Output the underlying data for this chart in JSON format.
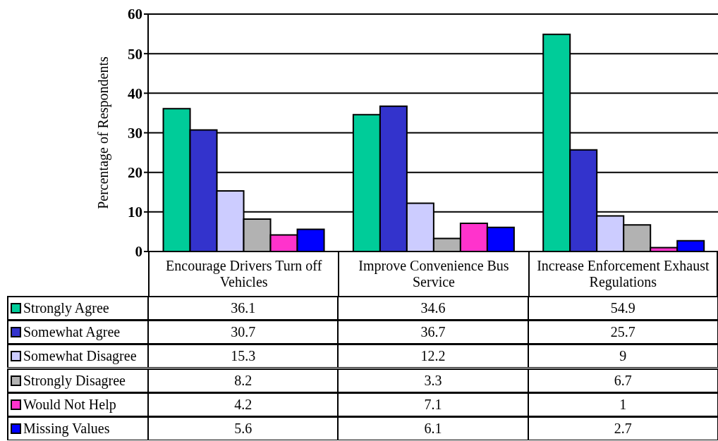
{
  "chart_data": {
    "type": "bar",
    "ylabel": "Percentage of Respondents",
    "categories": [
      "Encourage Drivers Turn off Vehicles",
      "Improve Convenience Bus Service",
      "Increase Enforcement Exhaust Regulations"
    ],
    "series": [
      {
        "name": "Strongly Agree",
        "color": "#00cc99",
        "values": [
          36.1,
          34.6,
          54.9
        ]
      },
      {
        "name": "Somewhat Agree",
        "color": "#3333cc",
        "values": [
          30.7,
          36.7,
          25.7
        ]
      },
      {
        "name": "Somewhat Disagree",
        "color": "#ccccff",
        "values": [
          15.3,
          12.2,
          9
        ]
      },
      {
        "name": "Strongly Disagree",
        "color": "#b2b2b2",
        "values": [
          8.2,
          3.3,
          6.7
        ]
      },
      {
        "name": "Would Not Help",
        "color": "#ff33cc",
        "values": [
          4.2,
          7.1,
          1
        ]
      },
      {
        "name": "Missing Values",
        "color": "#0000ff",
        "values": [
          5.6,
          6.1,
          2.7
        ]
      }
    ],
    "ylim": [
      0,
      60
    ],
    "yticks": [
      0,
      10,
      20,
      30,
      40,
      50,
      60
    ],
    "grid": "y",
    "legend": "bottom left",
    "data_labels": true
  }
}
